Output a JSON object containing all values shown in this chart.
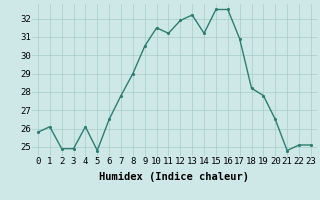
{
  "x": [
    0,
    1,
    2,
    3,
    4,
    5,
    6,
    7,
    8,
    9,
    10,
    11,
    12,
    13,
    14,
    15,
    16,
    17,
    18,
    19,
    20,
    21,
    22,
    23
  ],
  "y": [
    25.8,
    26.1,
    24.9,
    24.9,
    26.1,
    24.8,
    26.5,
    27.8,
    29.0,
    30.5,
    31.5,
    31.2,
    31.9,
    32.2,
    31.2,
    32.5,
    32.5,
    30.9,
    28.2,
    27.8,
    26.5,
    24.8,
    25.1,
    25.1
  ],
  "xlabel": "Humidex (Indice chaleur)",
  "line_color": "#2e7d6e",
  "bg_color": "#cee8e8",
  "grid_color": "#a8cccc",
  "ylim": [
    24.5,
    32.8
  ],
  "yticks": [
    25,
    26,
    27,
    28,
    29,
    30,
    31,
    32
  ],
  "xticks": [
    0,
    1,
    2,
    3,
    4,
    5,
    6,
    7,
    8,
    9,
    10,
    11,
    12,
    13,
    14,
    15,
    16,
    17,
    18,
    19,
    20,
    21,
    22,
    23
  ],
  "xlabel_fontsize": 7.5,
  "tick_fontsize": 6.5,
  "marker_size": 2.5,
  "line_width": 1.0
}
